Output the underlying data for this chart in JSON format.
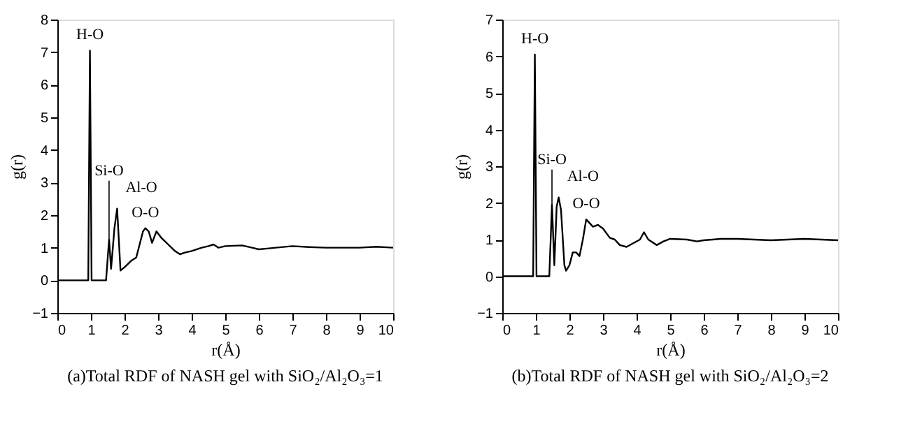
{
  "chart_data": [
    {
      "type": "line",
      "title": "(a)Total RDF of NASH gel with SiO₂/Al₂O₃=1",
      "xlabel": "r(Å)",
      "ylabel": "g(r)",
      "xlim": [
        0,
        10
      ],
      "ylim": [
        -1,
        8
      ],
      "xticks": [
        0,
        1,
        2,
        3,
        4,
        5,
        6,
        7,
        8,
        9,
        10
      ],
      "yticks": [
        -1,
        0,
        1,
        2,
        3,
        4,
        5,
        6,
        7,
        8
      ],
      "grid": false,
      "annotations": [
        {
          "text": "H-O",
          "x": 0.97,
          "y": 7.05
        },
        {
          "text": "Si-O",
          "x": 1.54,
          "y": 1.25
        },
        {
          "text": "Al-O",
          "x": 1.78,
          "y": 2.2
        },
        {
          "text": "O-O",
          "x": 2.62,
          "y": 1.6
        }
      ],
      "series": [
        {
          "color": "#000000",
          "x": [
            0,
            0.92,
            0.97,
            1.02,
            1.45,
            1.54,
            1.6,
            1.7,
            1.78,
            1.88,
            2.0,
            2.2,
            2.35,
            2.45,
            2.55,
            2.62,
            2.72,
            2.82,
            2.95,
            3.1,
            3.3,
            3.5,
            3.65,
            3.8,
            4.0,
            4.3,
            4.5,
            4.65,
            4.8,
            5.0,
            5.5,
            5.8,
            6.0,
            6.3,
            6.5,
            7.0,
            7.5,
            8.0,
            8.5,
            9.0,
            9.5,
            10.0
          ],
          "values": [
            0,
            0,
            7.05,
            0,
            0,
            1.25,
            0.35,
            1.6,
            2.2,
            0.3,
            0.4,
            0.6,
            0.7,
            1.1,
            1.5,
            1.6,
            1.5,
            1.15,
            1.5,
            1.3,
            1.1,
            0.9,
            0.8,
            0.85,
            0.9,
            1.0,
            1.05,
            1.1,
            1.0,
            1.05,
            1.07,
            1.0,
            0.95,
            0.98,
            1.0,
            1.05,
            1.02,
            1.0,
            1.0,
            1.0,
            1.03,
            1.0
          ]
        }
      ]
    },
    {
      "type": "line",
      "title": "(b)Total RDF of NASH gel with SiO₂/Al₂O₃=2",
      "xlabel": "r(Å)",
      "ylabel": "g(r)",
      "xlim": [
        0,
        10
      ],
      "ylim": [
        -1,
        7
      ],
      "xticks": [
        0,
        1,
        2,
        3,
        4,
        5,
        6,
        7,
        8,
        9,
        10
      ],
      "yticks": [
        -1,
        0,
        1,
        2,
        3,
        4,
        5,
        6,
        7
      ],
      "grid": false,
      "annotations": [
        {
          "text": "H-O",
          "x": 0.97,
          "y": 6.05
        },
        {
          "text": "Si-O",
          "x": 1.48,
          "y": 1.95
        },
        {
          "text": "Al-O",
          "x": 1.68,
          "y": 2.15
        },
        {
          "text": "O-O",
          "x": 2.5,
          "y": 1.55
        }
      ],
      "series": [
        {
          "color": "#000000",
          "x": [
            0,
            0.92,
            0.97,
            1.02,
            1.4,
            1.48,
            1.55,
            1.62,
            1.68,
            1.75,
            1.85,
            1.9,
            2.0,
            2.1,
            2.2,
            2.3,
            2.4,
            2.5,
            2.6,
            2.7,
            2.85,
            3.0,
            3.2,
            3.35,
            3.5,
            3.7,
            3.9,
            4.1,
            4.22,
            4.35,
            4.6,
            4.8,
            5.0,
            5.5,
            5.8,
            6.0,
            6.5,
            7.0,
            7.5,
            8.0,
            8.5,
            9.0,
            9.5,
            10.0
          ],
          "values": [
            0,
            0,
            6.05,
            0,
            0,
            1.95,
            0.3,
            1.9,
            2.15,
            1.8,
            0.3,
            0.15,
            0.3,
            0.65,
            0.65,
            0.55,
            1.0,
            1.55,
            1.45,
            1.35,
            1.4,
            1.3,
            1.05,
            1.0,
            0.85,
            0.8,
            0.9,
            1.0,
            1.2,
            1.0,
            0.85,
            0.95,
            1.02,
            1.0,
            0.95,
            0.98,
            1.02,
            1.02,
            1.0,
            0.98,
            1.0,
            1.02,
            1.0,
            0.98
          ]
        }
      ]
    }
  ]
}
